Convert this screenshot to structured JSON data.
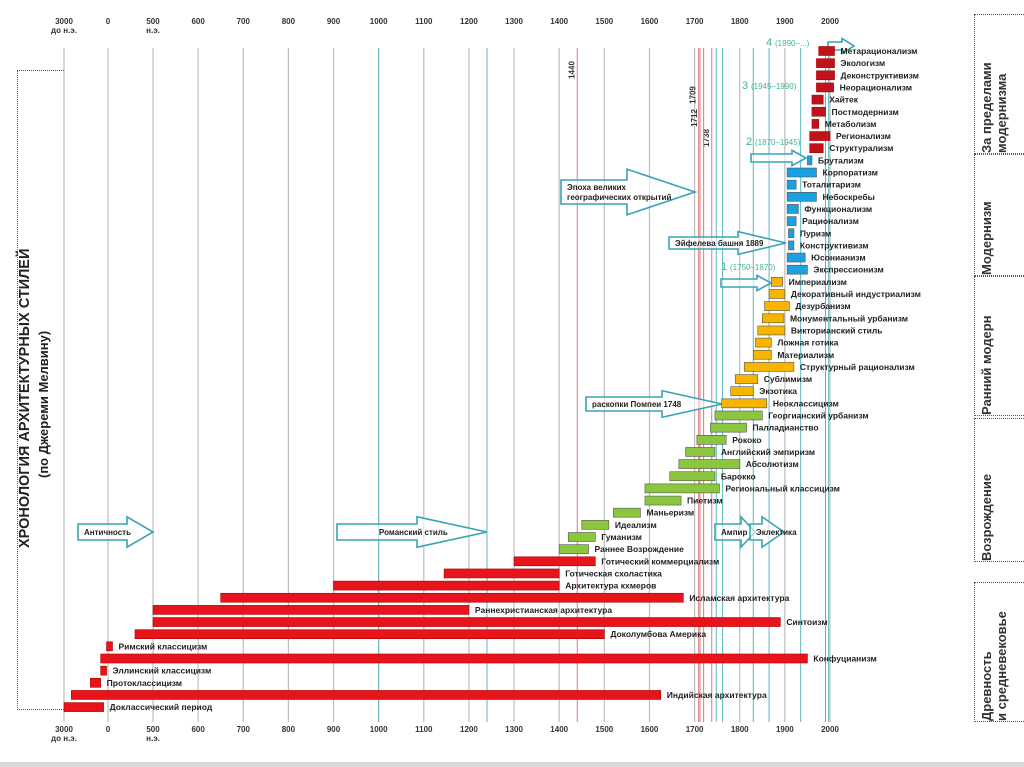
{
  "title": "ХРОНОЛОГИЯ АРХИТЕКТУРНЫХ СТИЛЕЙ",
  "subtitle": "(по Джереми Мелвину)",
  "periods": [
    {
      "label_lines": [
        "За пределами",
        "модернизма"
      ]
    },
    {
      "label_lines": [
        "Модернизм"
      ]
    },
    {
      "label_lines": [
        "Ранний модерн"
      ]
    },
    {
      "label_lines": [
        "Возрождение"
      ]
    },
    {
      "label_lines": [
        "Древность",
        "и средневековье"
      ]
    }
  ],
  "chart_data": {
    "type": "bar",
    "subtype": "timeline-gantt",
    "title": "ХРОНОЛОГИЯ АРХИТЕКТУРНЫХ СТИЛЕЙ (по Джереми Мелвину)",
    "xlabel": "",
    "ylabel": "",
    "x_ticks": [
      {
        "value": -3000,
        "lines": [
          "3000",
          "до н.э."
        ]
      },
      {
        "value": 0,
        "lines": [
          "0"
        ]
      },
      {
        "value": 500,
        "lines": [
          "500",
          "н.э."
        ]
      },
      {
        "value": 600,
        "lines": [
          "600"
        ]
      },
      {
        "value": 700,
        "lines": [
          "700"
        ]
      },
      {
        "value": 800,
        "lines": [
          "800"
        ]
      },
      {
        "value": 900,
        "lines": [
          "900"
        ]
      },
      {
        "value": 1000,
        "lines": [
          "1000"
        ]
      },
      {
        "value": 1100,
        "lines": [
          "1100"
        ]
      },
      {
        "value": 1200,
        "lines": [
          "1200"
        ]
      },
      {
        "value": 1300,
        "lines": [
          "1300"
        ]
      },
      {
        "value": 1400,
        "lines": [
          "1400"
        ]
      },
      {
        "value": 1500,
        "lines": [
          "1500"
        ]
      },
      {
        "value": 1600,
        "lines": [
          "1600"
        ]
      },
      {
        "value": 1700,
        "lines": [
          "1700"
        ]
      },
      {
        "value": 1800,
        "lines": [
          "1800"
        ]
      },
      {
        "value": 1900,
        "lines": [
          "1900"
        ]
      },
      {
        "value": 2000,
        "lines": [
          "2000"
        ]
      }
    ],
    "xlim": [
      -3000,
      2000
    ],
    "grid": true,
    "colors": {
      "ancient": "#e8141c",
      "renaissance": "#8cc63f",
      "early_modern": "#f7b500",
      "modernism": "#1ba1e2",
      "beyond": "#c0121a",
      "grid": "#bdbdbd",
      "marker_red": "#e07a7a",
      "marker_teal": "#5bb8c4",
      "arrow": "#3aa3b5",
      "era_green": "#3bb58f"
    },
    "marker_lines": [
      {
        "year": 1440,
        "label": "1440",
        "color": "red"
      },
      {
        "year": 1709,
        "label": "1709",
        "color": "red"
      },
      {
        "year": 1712,
        "label": "1712",
        "color": "red"
      },
      {
        "year": 1738,
        "label": "1738",
        "color": "red"
      },
      {
        "year": 1720,
        "label": "",
        "color": "red"
      },
      {
        "year": 1000,
        "label": "",
        "color": "teal"
      },
      {
        "year": 1240,
        "label": "",
        "color": "teal"
      },
      {
        "year": 1748,
        "label": "",
        "color": "teal"
      },
      {
        "year": 1762,
        "label": "",
        "color": "teal"
      },
      {
        "year": 1830,
        "label": "",
        "color": "teal"
      },
      {
        "year": 1865,
        "label": "",
        "color": "teal"
      },
      {
        "year": 1935,
        "label": "",
        "color": "teal"
      },
      {
        "year": 1990,
        "label": "",
        "color": "teal"
      },
      {
        "year": 1997,
        "label": "",
        "color": "teal"
      }
    ],
    "series": [
      {
        "name": "Метарационализм",
        "start": 1975,
        "end": 2010,
        "group": "beyond"
      },
      {
        "name": "Экологизм",
        "start": 1970,
        "end": 2010,
        "group": "beyond"
      },
      {
        "name": "Деконструктивизм",
        "start": 1970,
        "end": 2010,
        "group": "beyond"
      },
      {
        "name": "Неорационализм",
        "start": 1970,
        "end": 2008,
        "group": "beyond"
      },
      {
        "name": "Хайтек",
        "start": 1960,
        "end": 1985,
        "group": "beyond"
      },
      {
        "name": "Постмодернизм",
        "start": 1960,
        "end": 1990,
        "group": "beyond"
      },
      {
        "name": "Метаболизм",
        "start": 1960,
        "end": 1975,
        "group": "beyond"
      },
      {
        "name": "Регионализм",
        "start": 1955,
        "end": 2000,
        "group": "beyond"
      },
      {
        "name": "Структурализм",
        "start": 1955,
        "end": 1985,
        "group": "beyond"
      },
      {
        "name": "Брутализм",
        "start": 1950,
        "end": 1960,
        "group": "modernism"
      },
      {
        "name": "Корпоратизм",
        "start": 1905,
        "end": 1970,
        "group": "modernism"
      },
      {
        "name": "Тоталитаризм",
        "start": 1905,
        "end": 1925,
        "group": "modernism"
      },
      {
        "name": "Небоскребы",
        "start": 1905,
        "end": 1970,
        "group": "modernism"
      },
      {
        "name": "Функционализм",
        "start": 1905,
        "end": 1930,
        "group": "modernism"
      },
      {
        "name": "Рационализм",
        "start": 1905,
        "end": 1925,
        "group": "modernism"
      },
      {
        "name": "Пуризм",
        "start": 1908,
        "end": 1920,
        "group": "modernism"
      },
      {
        "name": "Конструктивизм",
        "start": 1908,
        "end": 1920,
        "group": "modernism"
      },
      {
        "name": "Юсонианизм",
        "start": 1905,
        "end": 1945,
        "group": "modernism"
      },
      {
        "name": "Экспрессионизм",
        "start": 1905,
        "end": 1950,
        "group": "modernism"
      },
      {
        "name": "Империализм",
        "start": 1870,
        "end": 1895,
        "group": "early_modern"
      },
      {
        "name": "Декоративный индустриализм",
        "start": 1865,
        "end": 1900,
        "group": "early_modern"
      },
      {
        "name": "Дезурбанизм",
        "start": 1855,
        "end": 1910,
        "group": "early_modern"
      },
      {
        "name": "Монументальный урбанизм",
        "start": 1850,
        "end": 1898,
        "group": "early_modern"
      },
      {
        "name": "Викторианский стиль",
        "start": 1840,
        "end": 1900,
        "group": "early_modern"
      },
      {
        "name": "Ложная готика",
        "start": 1835,
        "end": 1870,
        "group": "early_modern"
      },
      {
        "name": "Материализм",
        "start": 1830,
        "end": 1870,
        "group": "early_modern"
      },
      {
        "name": "Структурный рационализм",
        "start": 1810,
        "end": 1920,
        "group": "early_modern"
      },
      {
        "name": "Сублимизм",
        "start": 1790,
        "end": 1840,
        "group": "early_modern"
      },
      {
        "name": "Экзотика",
        "start": 1780,
        "end": 1830,
        "group": "early_modern"
      },
      {
        "name": "Неоклассицизм",
        "start": 1760,
        "end": 1860,
        "group": "early_modern"
      },
      {
        "name": "Георгианский урбанизм",
        "start": 1745,
        "end": 1850,
        "group": "renaissance"
      },
      {
        "name": "Палладианство",
        "start": 1735,
        "end": 1815,
        "group": "renaissance"
      },
      {
        "name": "Рококо",
        "start": 1705,
        "end": 1770,
        "group": "renaissance"
      },
      {
        "name": "Английский эмпиризм",
        "start": 1680,
        "end": 1745,
        "group": "renaissance"
      },
      {
        "name": "Абсолютизм",
        "start": 1665,
        "end": 1800,
        "group": "renaissance"
      },
      {
        "name": "Барокко",
        "start": 1645,
        "end": 1745,
        "group": "renaissance"
      },
      {
        "name": "Региональный классицизм",
        "start": 1590,
        "end": 1755,
        "group": "renaissance"
      },
      {
        "name": "Пиетизм",
        "start": 1590,
        "end": 1670,
        "group": "renaissance"
      },
      {
        "name": "Маньеризм",
        "start": 1520,
        "end": 1580,
        "group": "renaissance"
      },
      {
        "name": "Идеализм",
        "start": 1450,
        "end": 1510,
        "group": "renaissance"
      },
      {
        "name": "Гуманизм",
        "start": 1420,
        "end": 1480,
        "group": "renaissance"
      },
      {
        "name": "Раннее Возрождение",
        "start": 1400,
        "end": 1465,
        "group": "renaissance"
      },
      {
        "name": "Готический коммерциализм",
        "start": 1300,
        "end": 1480,
        "group": "ancient"
      },
      {
        "name": "Готическая схоластика",
        "start": 1145,
        "end": 1400,
        "group": "ancient"
      },
      {
        "name": "Архитектура кхмеров",
        "start": 900,
        "end": 1400,
        "group": "ancient"
      },
      {
        "name": "Исламская архитектура",
        "start": 650,
        "end": 1675,
        "group": "ancient"
      },
      {
        "name": "Раннехристианская архитектура",
        "start": 500,
        "end": 1200,
        "group": "ancient"
      },
      {
        "name": "Синтоизм",
        "start": 500,
        "end": 1890,
        "group": "ancient"
      },
      {
        "name": "Доколумбова Америка",
        "start": 300,
        "end": 1500,
        "group": "ancient"
      },
      {
        "name": "Римский классицизм",
        "start": -100,
        "end": 50,
        "group": "ancient"
      },
      {
        "name": "Конфуцианизм",
        "start": -500,
        "end": 1950,
        "group": "ancient"
      },
      {
        "name": "Эллинский классицизм",
        "start": -500,
        "end": -100,
        "group": "ancient"
      },
      {
        "name": "Протоклассицизм",
        "start": -1200,
        "end": -500,
        "group": "ancient"
      },
      {
        "name": "Индийская архитектура",
        "start": -2500,
        "end": 1625,
        "group": "ancient"
      },
      {
        "name": "Доклассический период",
        "start": -3000,
        "end": -300,
        "group": "ancient"
      }
    ],
    "annotations": [
      {
        "type": "arrow",
        "label": "Античность",
        "from": -1300,
        "to": 500
      },
      {
        "type": "arrow",
        "label": "Романский стиль",
        "from": 1000,
        "to": 1240
      },
      {
        "type": "arrow",
        "label_lines": [
          "Эпоха великих",
          "географических открытий"
        ],
        "from": 1420,
        "to": 1690
      },
      {
        "type": "arrow",
        "label": "Эйфелева башня 1889",
        "from": 1780,
        "to": 1900
      },
      {
        "type": "arrow",
        "label": "раскопки Помпеи 1748",
        "from": 1480,
        "to": 1760
      },
      {
        "type": "arrow",
        "label": "Ампир",
        "from": 1745,
        "to": 1810
      },
      {
        "type": "arrow",
        "label": "Эклектика",
        "from": 1800,
        "to": 1860
      },
      {
        "type": "era",
        "label": "1 (1750–1870)",
        "at": 1870
      },
      {
        "type": "era",
        "label": "2 (1870–1945)",
        "at": 1945
      },
      {
        "type": "era",
        "label": "3 (1945–1990)",
        "at": 1990
      },
      {
        "type": "era",
        "label": "4 (1990–...)",
        "at": 2000
      }
    ]
  }
}
